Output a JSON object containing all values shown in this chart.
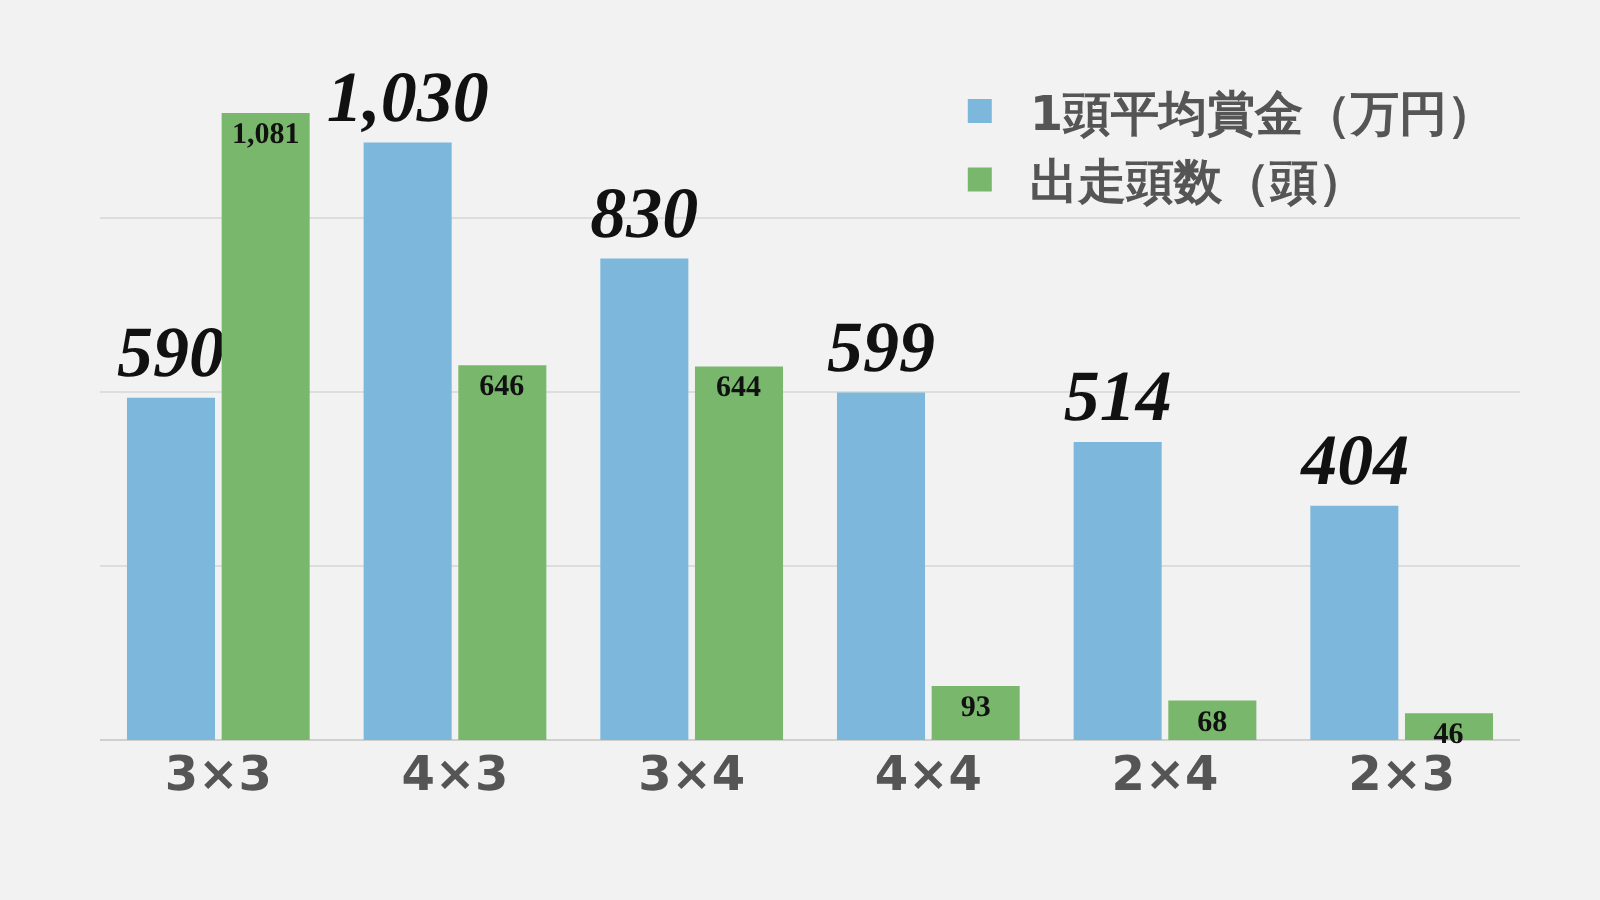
{
  "chart_data": {
    "type": "bar",
    "categories": [
      "3×3",
      "4×3",
      "3×4",
      "4×4",
      "2×4",
      "2×3"
    ],
    "series": [
      {
        "name": "1頭平均賞金（万円）",
        "color": "#7db8dc",
        "values": [
          590,
          1030,
          830,
          599,
          514,
          404
        ],
        "value_labels": [
          "590",
          "1,030",
          "830",
          "599",
          "514",
          "404"
        ]
      },
      {
        "name": "出走頭数（頭）",
        "color": "#79b86c",
        "values": [
          1081,
          646,
          644,
          93,
          68,
          46
        ],
        "value_labels": [
          "1,081",
          "646",
          "644",
          "93",
          "68",
          "46"
        ]
      }
    ],
    "yticks": [
      {
        "value": 0,
        "label": null
      },
      {
        "value": 300,
        "label": null
      },
      {
        "value": 600,
        "label": null
      },
      {
        "value": 900,
        "label": null
      }
    ],
    "grid": "y",
    "legend": "top right",
    "tick_labels": "x"
  }
}
